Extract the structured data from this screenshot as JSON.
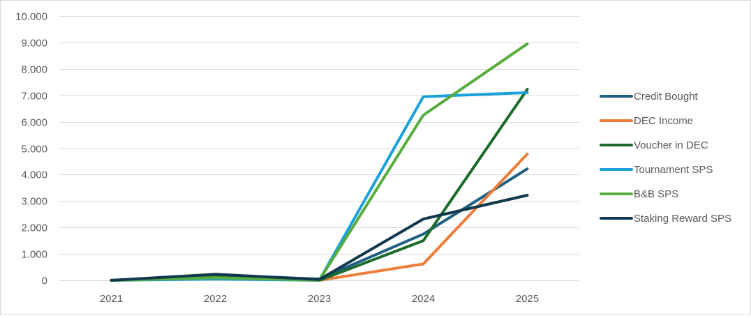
{
  "chart_data": {
    "type": "line",
    "title": "",
    "xlabel": "",
    "ylabel": "",
    "categories": [
      "2021",
      "2022",
      "2023",
      "2024",
      "2025"
    ],
    "ylim": [
      0,
      10000
    ],
    "y_ticks": [
      0,
      1000,
      2000,
      3000,
      4000,
      5000,
      6000,
      7000,
      8000,
      9000,
      10000
    ],
    "y_tick_labels": [
      "0",
      "1.000",
      "2.000",
      "3.000",
      "4.000",
      "5.000",
      "6.000",
      "7.000",
      "8.000",
      "9.000",
      "10.000"
    ],
    "grid": "horizontal",
    "legend_position": "right",
    "series": [
      {
        "name": "Credit Bought",
        "color": "#1f5f83",
        "values": [
          0,
          200,
          50,
          1750,
          4220
        ]
      },
      {
        "name": "DEC Income",
        "color": "#ee7d3b",
        "values": [
          0,
          150,
          0,
          620,
          4780
        ]
      },
      {
        "name": "Voucher in DEC",
        "color": "#1b6b2a",
        "values": [
          0,
          180,
          0,
          1500,
          7230
        ]
      },
      {
        "name": "Tournament SPS",
        "color": "#1ba1da",
        "values": [
          0,
          50,
          0,
          6950,
          7100
        ]
      },
      {
        "name": "B&B SPS",
        "color": "#58ac3e",
        "values": [
          0,
          100,
          0,
          6250,
          8950
        ]
      },
      {
        "name": "Staking Reward SPS",
        "color": "#11394d",
        "values": [
          0,
          230,
          30,
          2320,
          3220
        ]
      }
    ]
  }
}
